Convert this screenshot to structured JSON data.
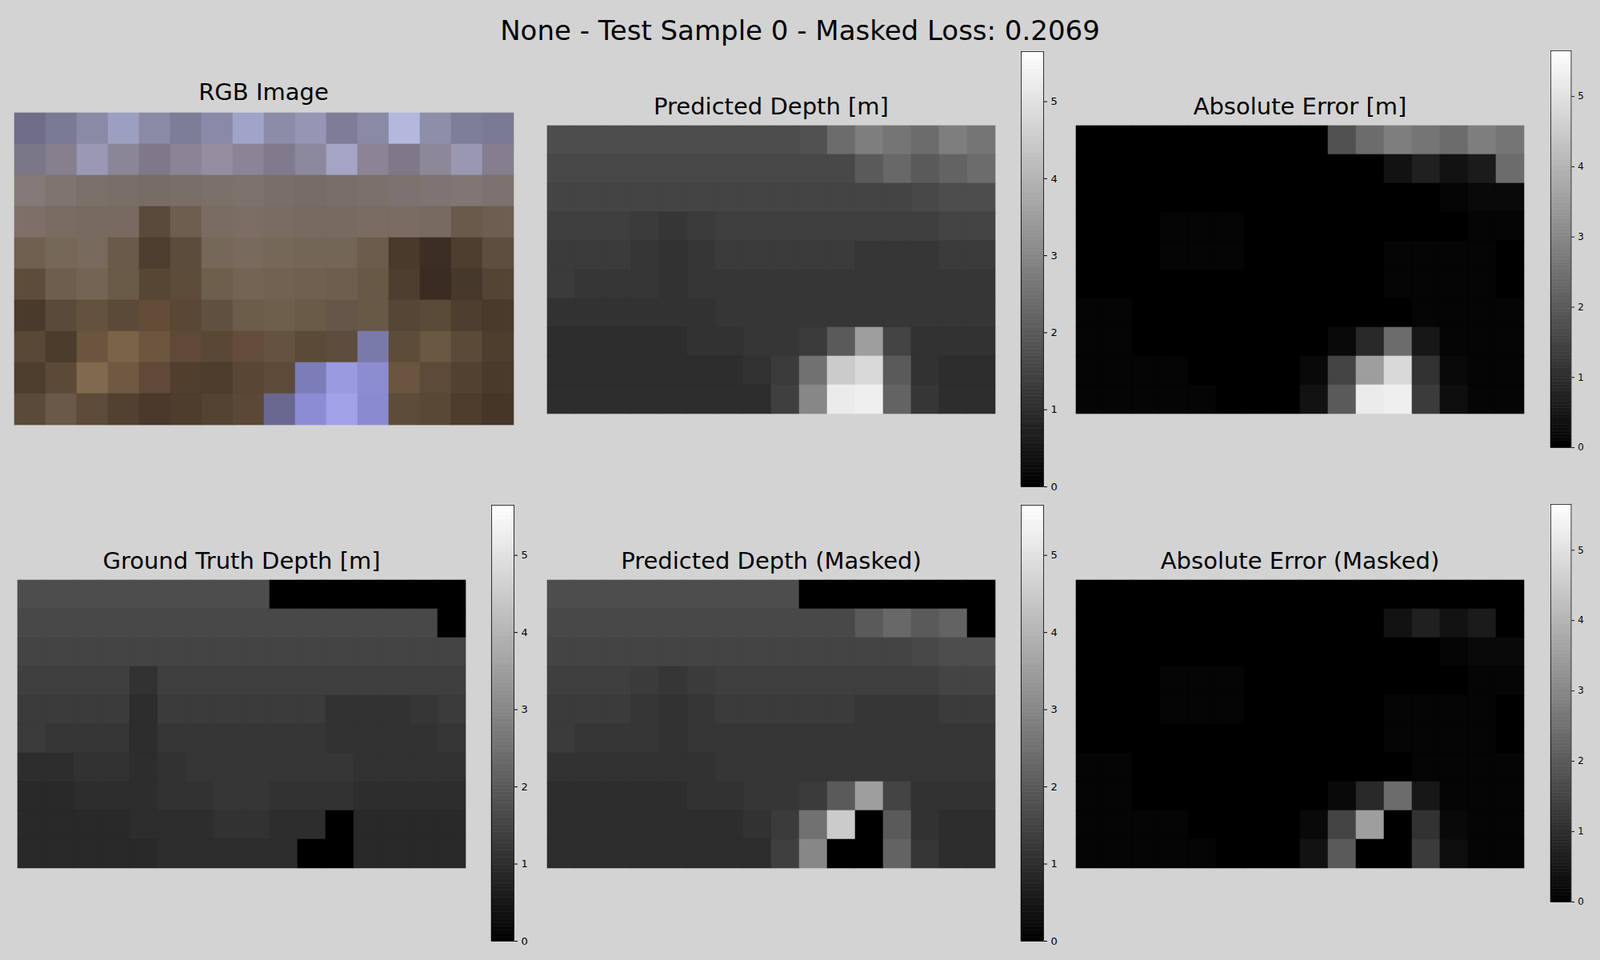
{
  "title": "None - Test Sample 0 - Masked Loss: 0.2069",
  "chart_data": [
    {
      "type": "image",
      "title": "RGB Image",
      "tick_labels": false,
      "colors": [
        [
          "#6f6e86",
          "#7a7a94",
          "#8a8aa6",
          "#9d9fc0",
          "#8a8aa6",
          "#7d7d98",
          "#8a8aa8",
          "#a0a4c8",
          "#8c8ca8",
          "#9696b4",
          "#7e7c96",
          "#8a8aa6",
          "#b4b8dc",
          "#8e8ea8",
          "#7e7e98",
          "#7a7a92"
        ],
        [
          "#7a7888",
          "#857f8e",
          "#9a98b4",
          "#8a8698",
          "#7e7888",
          "#8a8496",
          "#948ea0",
          "#8a8496",
          "#807a8c",
          "#8c889e",
          "#a4a4c4",
          "#8a8496",
          "#7e7888",
          "#8c889a",
          "#9a98b0",
          "#847e8e"
        ],
        [
          "#857a78",
          "#807470",
          "#7c706a",
          "#7a6e68",
          "#786c66",
          "#7a6e68",
          "#7c706a",
          "#7e726c",
          "#7a6e68",
          "#786c66",
          "#7a6e6a",
          "#7c706c",
          "#7e7270",
          "#807472",
          "#827674",
          "#7e7270"
        ],
        [
          "#7e7068",
          "#7a6c62",
          "#776a60",
          "#786a60",
          "#5a4a3c",
          "#6e5e50",
          "#7a6c62",
          "#7c6e64",
          "#7a6c62",
          "#786a60",
          "#786a60",
          "#7a6c62",
          "#7a6c62",
          "#776a60",
          "#6a5a4c",
          "#6e5e52"
        ],
        [
          "#706050",
          "#766858",
          "#786a5c",
          "#6a5a4a",
          "#4e3e30",
          "#5c4c3c",
          "#766858",
          "#786a5c",
          "#766858",
          "#746656",
          "#746656",
          "#6c5c4c",
          "#4a3a2c",
          "#3c2e22",
          "#4e3e30",
          "#5e4e40"
        ],
        [
          "#5e4c3a",
          "#6e5e4e",
          "#746454",
          "#6a5a48",
          "#584634",
          "#5e4c3a",
          "#6e5e4c",
          "#746454",
          "#726252",
          "#706050",
          "#6e5e4e",
          "#685846",
          "#4e3e30",
          "#3a2c20",
          "#46382a",
          "#544434"
        ],
        [
          "#4a3a2c",
          "#5a4a3a",
          "#64523e",
          "#5c4a38",
          "#624e38",
          "#5a4834",
          "#605040",
          "#6c5c4a",
          "#6e5e4c",
          "#6a5a48",
          "#66564a",
          "#685846",
          "#564636",
          "#5a4a38",
          "#4e3e30",
          "#4a3a2c"
        ],
        [
          "#5a4836",
          "#4c3c2c",
          "#6a563e",
          "#7a6448",
          "#6c5640",
          "#5e4a36",
          "#5a4834",
          "#624e3a",
          "#665240",
          "#5c4a38",
          "#5e4c3c",
          "#7a7aaa",
          "#5e4c3a",
          "#6a5842",
          "#5c4a38",
          "#4e3e2e"
        ],
        [
          "#4e3e2e",
          "#5c4a36",
          "#806a4e",
          "#6e5a42",
          "#5e4a36",
          "#523e2c",
          "#4e3c2c",
          "#5a4634",
          "#5e4a38",
          "#7c7cb8",
          "#9a9ae0",
          "#8c8cd0",
          "#6a5640",
          "#5e4a38",
          "#524030",
          "#4a3a2c"
        ],
        [
          "#5a4a3a",
          "#6a5848",
          "#5e4a38",
          "#524030",
          "#4a382a",
          "#4e3c2c",
          "#544232",
          "#5c4836",
          "#6a6890",
          "#8c8cd4",
          "#a2a2e8",
          "#8a8ad0",
          "#5e4c3a",
          "#5a4836",
          "#4e3c2c",
          "#463628"
        ]
      ]
    },
    {
      "type": "heatmap",
      "title": "Predicted Depth [m]",
      "tick_labels": false,
      "color_lim": [
        0,
        5.65
      ],
      "color_ticks": [
        0,
        1,
        2,
        3,
        4,
        5
      ],
      "cells": [
        [
          1.7,
          1.7,
          1.7,
          1.7,
          1.7,
          1.7,
          1.7,
          1.7,
          1.7,
          1.8,
          2.4,
          2.8,
          2.6,
          2.4,
          2.8,
          2.6
        ],
        [
          1.6,
          1.6,
          1.6,
          1.6,
          1.6,
          1.6,
          1.6,
          1.6,
          1.6,
          1.6,
          1.6,
          2.0,
          2.3,
          2.0,
          2.2,
          2.4
        ],
        [
          1.5,
          1.5,
          1.5,
          1.5,
          1.5,
          1.5,
          1.5,
          1.5,
          1.5,
          1.5,
          1.5,
          1.5,
          1.5,
          1.6,
          1.7,
          1.7
        ],
        [
          1.4,
          1.4,
          1.4,
          1.3,
          1.2,
          1.3,
          1.4,
          1.4,
          1.4,
          1.4,
          1.4,
          1.4,
          1.4,
          1.4,
          1.5,
          1.5
        ],
        [
          1.3,
          1.3,
          1.3,
          1.2,
          1.1,
          1.2,
          1.3,
          1.3,
          1.3,
          1.3,
          1.3,
          1.2,
          1.2,
          1.2,
          1.3,
          1.3
        ],
        [
          1.3,
          1.2,
          1.2,
          1.2,
          1.1,
          1.2,
          1.2,
          1.2,
          1.2,
          1.2,
          1.2,
          1.2,
          1.2,
          1.2,
          1.2,
          1.2
        ],
        [
          1.1,
          1.1,
          1.1,
          1.1,
          1.1,
          1.1,
          1.2,
          1.2,
          1.2,
          1.2,
          1.2,
          1.2,
          1.2,
          1.2,
          1.2,
          1.2
        ],
        [
          1.0,
          1.0,
          1.0,
          1.0,
          1.0,
          1.1,
          1.1,
          1.2,
          1.2,
          1.3,
          2.0,
          3.5,
          1.5,
          1.1,
          1.1,
          1.1
        ],
        [
          1.0,
          1.0,
          1.0,
          1.0,
          1.0,
          1.0,
          1.0,
          1.1,
          1.3,
          2.5,
          4.5,
          4.8,
          2.0,
          1.1,
          1.0,
          1.0
        ],
        [
          1.0,
          1.0,
          1.0,
          1.0,
          1.0,
          1.0,
          1.0,
          1.0,
          1.4,
          3.0,
          5.2,
          5.3,
          2.2,
          1.2,
          1.0,
          1.0
        ]
      ]
    },
    {
      "type": "heatmap",
      "title": "Absolute Error [m]",
      "tick_labels": false,
      "color_lim": [
        0,
        5.65
      ],
      "color_ticks": [
        0,
        1,
        2,
        3,
        4,
        5
      ],
      "cells": [
        [
          0,
          0,
          0,
          0,
          0,
          0,
          0,
          0,
          0,
          1.8,
          2.4,
          2.8,
          2.6,
          2.4,
          2.8,
          2.6
        ],
        [
          0,
          0,
          0,
          0,
          0,
          0,
          0,
          0,
          0,
          0,
          0,
          0.4,
          0.7,
          0.4,
          0.6,
          2.4
        ],
        [
          0,
          0,
          0,
          0,
          0,
          0,
          0,
          0,
          0,
          0,
          0,
          0,
          0,
          0.1,
          0.2,
          0.2
        ],
        [
          0,
          0,
          0,
          0.1,
          0.1,
          0.1,
          0,
          0,
          0,
          0,
          0,
          0,
          0,
          0,
          0.1,
          0.1
        ],
        [
          0,
          0,
          0,
          0.1,
          0.1,
          0.1,
          0,
          0,
          0,
          0,
          0,
          0.1,
          0.1,
          0.1,
          0.1,
          0
        ],
        [
          0,
          0,
          0,
          0,
          0,
          0,
          0,
          0,
          0,
          0,
          0,
          0.1,
          0.1,
          0.1,
          0.1,
          0
        ],
        [
          0.1,
          0.1,
          0,
          0,
          0,
          0,
          0,
          0,
          0,
          0,
          0,
          0,
          0.1,
          0.1,
          0.1,
          0.1
        ],
        [
          0.1,
          0.1,
          0,
          0,
          0,
          0,
          0,
          0,
          0,
          0.2,
          0.9,
          2.4,
          0.5,
          0.1,
          0.1,
          0.1
        ],
        [
          0.1,
          0.1,
          0.1,
          0.1,
          0,
          0,
          0,
          0,
          0.2,
          1.5,
          3.5,
          4.8,
          1.1,
          0.2,
          0.1,
          0.1
        ],
        [
          0.1,
          0.1,
          0.1,
          0.1,
          0.1,
          0,
          0,
          0,
          0.4,
          2.0,
          5.2,
          5.3,
          1.3,
          0.3,
          0.1,
          0.1
        ]
      ]
    },
    {
      "type": "heatmap",
      "title": "Ground Truth Depth [m]",
      "tick_labels": false,
      "color_lim": [
        0,
        5.65
      ],
      "color_ticks": [
        0,
        1,
        2,
        3,
        4,
        5
      ],
      "cells": [
        [
          1.7,
          1.7,
          1.7,
          1.7,
          1.7,
          1.7,
          1.7,
          1.7,
          1.7,
          0,
          0,
          0,
          0,
          0,
          0,
          0
        ],
        [
          1.6,
          1.6,
          1.6,
          1.6,
          1.6,
          1.6,
          1.6,
          1.6,
          1.6,
          1.6,
          1.6,
          1.6,
          1.6,
          1.6,
          1.6,
          0
        ],
        [
          1.5,
          1.5,
          1.5,
          1.5,
          1.5,
          1.5,
          1.5,
          1.5,
          1.5,
          1.5,
          1.5,
          1.5,
          1.5,
          1.5,
          1.5,
          1.5
        ],
        [
          1.4,
          1.4,
          1.4,
          1.4,
          1.1,
          1.4,
          1.4,
          1.4,
          1.4,
          1.4,
          1.4,
          1.4,
          1.4,
          1.4,
          1.4,
          1.4
        ],
        [
          1.3,
          1.3,
          1.3,
          1.3,
          1.0,
          1.3,
          1.3,
          1.3,
          1.3,
          1.3,
          1.3,
          1.1,
          1.1,
          1.1,
          1.2,
          1.3
        ],
        [
          1.3,
          1.2,
          1.2,
          1.2,
          1.0,
          1.2,
          1.2,
          1.2,
          1.2,
          1.2,
          1.2,
          1.1,
          1.1,
          1.1,
          1.1,
          1.2
        ],
        [
          1.0,
          1.0,
          1.1,
          1.1,
          1.0,
          1.1,
          1.2,
          1.2,
          1.2,
          1.2,
          1.2,
          1.2,
          1.1,
          1.1,
          1.1,
          1.1
        ],
        [
          0.9,
          0.9,
          1.0,
          1.0,
          1.0,
          1.1,
          1.1,
          1.2,
          1.2,
          1.1,
          1.1,
          1.1,
          1.0,
          1.0,
          1.0,
          1.0
        ],
        [
          0.9,
          0.9,
          0.9,
          0.9,
          1.0,
          1.0,
          1.0,
          1.1,
          1.1,
          1.0,
          1.0,
          0,
          0.9,
          0.9,
          0.9,
          0.9
        ],
        [
          0.9,
          0.9,
          0.9,
          0.9,
          0.9,
          1.0,
          1.0,
          1.0,
          1.0,
          1.0,
          0,
          0,
          0.9,
          0.9,
          0.9,
          0.9
        ]
      ]
    },
    {
      "type": "heatmap",
      "title": "Predicted Depth (Masked)",
      "tick_labels": false,
      "color_lim": [
        0,
        5.65
      ],
      "color_ticks": [
        0,
        1,
        2,
        3,
        4,
        5
      ],
      "cells": [
        [
          1.7,
          1.7,
          1.7,
          1.7,
          1.7,
          1.7,
          1.7,
          1.7,
          1.7,
          0,
          0,
          0,
          0,
          0,
          0,
          0
        ],
        [
          1.6,
          1.6,
          1.6,
          1.6,
          1.6,
          1.6,
          1.6,
          1.6,
          1.6,
          1.6,
          1.6,
          2.0,
          2.3,
          2.0,
          2.2,
          0
        ],
        [
          1.5,
          1.5,
          1.5,
          1.5,
          1.5,
          1.5,
          1.5,
          1.5,
          1.5,
          1.5,
          1.5,
          1.5,
          1.5,
          1.6,
          1.7,
          1.7
        ],
        [
          1.4,
          1.4,
          1.4,
          1.3,
          1.2,
          1.3,
          1.4,
          1.4,
          1.4,
          1.4,
          1.4,
          1.4,
          1.4,
          1.4,
          1.5,
          1.5
        ],
        [
          1.3,
          1.3,
          1.3,
          1.2,
          1.1,
          1.2,
          1.3,
          1.3,
          1.3,
          1.3,
          1.3,
          1.2,
          1.2,
          1.2,
          1.3,
          1.3
        ],
        [
          1.3,
          1.2,
          1.2,
          1.2,
          1.1,
          1.2,
          1.2,
          1.2,
          1.2,
          1.2,
          1.2,
          1.2,
          1.2,
          1.2,
          1.2,
          1.2
        ],
        [
          1.1,
          1.1,
          1.1,
          1.1,
          1.1,
          1.1,
          1.2,
          1.2,
          1.2,
          1.2,
          1.2,
          1.2,
          1.2,
          1.2,
          1.2,
          1.2
        ],
        [
          1.0,
          1.0,
          1.0,
          1.0,
          1.0,
          1.1,
          1.1,
          1.2,
          1.2,
          1.3,
          2.0,
          3.5,
          1.5,
          1.1,
          1.1,
          1.1
        ],
        [
          1.0,
          1.0,
          1.0,
          1.0,
          1.0,
          1.0,
          1.0,
          1.1,
          1.3,
          2.5,
          4.5,
          0,
          2.0,
          1.1,
          1.0,
          1.0
        ],
        [
          1.0,
          1.0,
          1.0,
          1.0,
          1.0,
          1.0,
          1.0,
          1.0,
          1.4,
          3.0,
          0,
          0,
          2.2,
          1.2,
          1.0,
          1.0
        ]
      ]
    },
    {
      "type": "heatmap",
      "title": "Absolute Error (Masked)",
      "tick_labels": false,
      "color_lim": [
        0,
        5.65
      ],
      "color_ticks": [
        0,
        1,
        2,
        3,
        4,
        5
      ],
      "cells": [
        [
          0,
          0,
          0,
          0,
          0,
          0,
          0,
          0,
          0,
          0,
          0,
          0,
          0,
          0,
          0,
          0
        ],
        [
          0,
          0,
          0,
          0,
          0,
          0,
          0,
          0,
          0,
          0,
          0,
          0.4,
          0.7,
          0.4,
          0.6,
          0
        ],
        [
          0,
          0,
          0,
          0,
          0,
          0,
          0,
          0,
          0,
          0,
          0,
          0,
          0,
          0.1,
          0.2,
          0.2
        ],
        [
          0,
          0,
          0,
          0.1,
          0.1,
          0.1,
          0,
          0,
          0,
          0,
          0,
          0,
          0,
          0,
          0.1,
          0.1
        ],
        [
          0,
          0,
          0,
          0.1,
          0.1,
          0.1,
          0,
          0,
          0,
          0,
          0,
          0.1,
          0.1,
          0.1,
          0.1,
          0
        ],
        [
          0,
          0,
          0,
          0,
          0,
          0,
          0,
          0,
          0,
          0,
          0,
          0.1,
          0.1,
          0.1,
          0.1,
          0
        ],
        [
          0.1,
          0.1,
          0,
          0,
          0,
          0,
          0,
          0,
          0,
          0,
          0,
          0,
          0.1,
          0.1,
          0.1,
          0.1
        ],
        [
          0.1,
          0.1,
          0,
          0,
          0,
          0,
          0,
          0,
          0,
          0.2,
          0.9,
          2.4,
          0.5,
          0.1,
          0.1,
          0.1
        ],
        [
          0.1,
          0.1,
          0.1,
          0.1,
          0,
          0,
          0,
          0,
          0.2,
          1.5,
          3.5,
          0,
          1.1,
          0.2,
          0.1,
          0.1
        ],
        [
          0.1,
          0.1,
          0.1,
          0.1,
          0.1,
          0,
          0,
          0,
          0.4,
          2.0,
          0,
          0,
          1.3,
          0.3,
          0.1,
          0.1
        ]
      ]
    }
  ]
}
